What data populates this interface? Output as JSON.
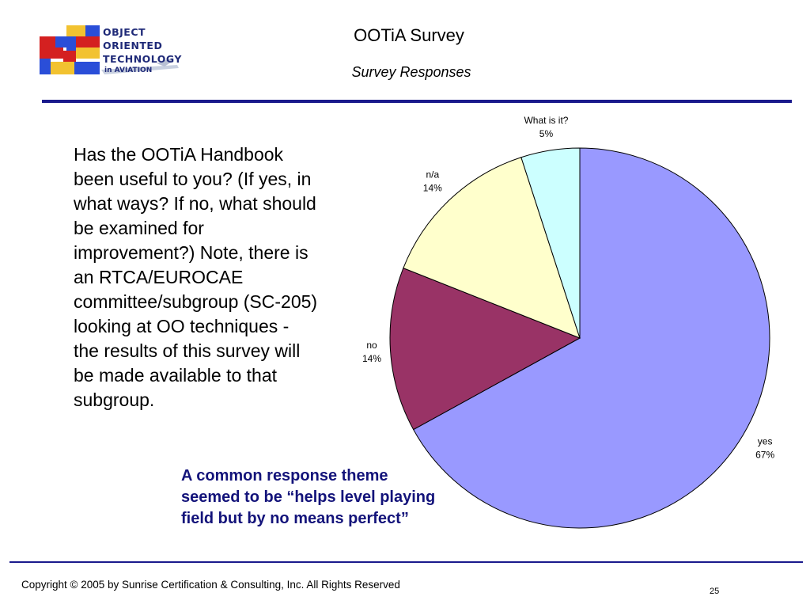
{
  "logo": {
    "lines": [
      "OBJECT",
      "ORIENTED",
      "TECHNOLOGY"
    ],
    "sub": "in AVIATION"
  },
  "header": {
    "title": "OOTiA Survey",
    "subtitle": "Survey Responses"
  },
  "question": "Has the OOTiA Handbook been useful to you?  (If yes, in what ways?  If no, what should be examined for improvement?)  Note, there is an RTCA/EUROCAE committee/subgroup (SC-205) looking at OO techniques - the results of this survey will be made available to that subgroup.",
  "theme": "A common response theme seemed to be “helps level playing field but by no means perfect”",
  "chart_data": {
    "type": "pie",
    "slices": [
      {
        "label": "yes",
        "value": 67,
        "pct_label": "67%",
        "color": "#9999ff"
      },
      {
        "label": "no",
        "value": 14,
        "pct_label": "14%",
        "color": "#993366"
      },
      {
        "label": "n/a",
        "value": 14,
        "pct_label": "14%",
        "color": "#ffffcc"
      },
      {
        "label": "What is it?",
        "value": 5,
        "pct_label": "5%",
        "color": "#ccffff"
      }
    ]
  },
  "footer": {
    "copyright": "Copyright © 2005 by Sunrise Certification & Consulting, Inc.  All Rights Reserved",
    "page": "25"
  }
}
